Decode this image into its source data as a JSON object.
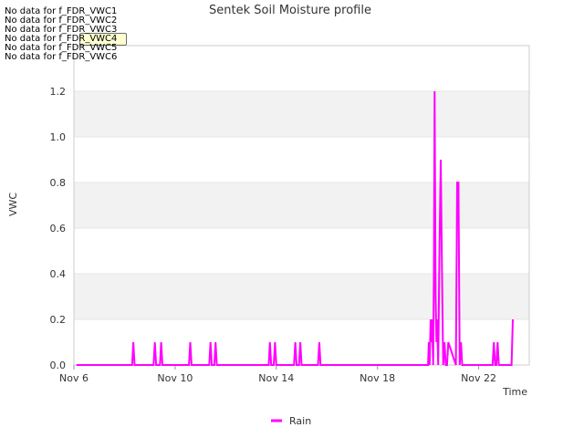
{
  "chart_data": {
    "type": "line",
    "title": "Sentek Soil Moisture profile",
    "xlabel": "Time",
    "ylabel": "VWC",
    "x_ticks": [
      "Nov 6",
      "Nov 10",
      "Nov 14",
      "Nov 18",
      "Nov 22"
    ],
    "x_tick_days": [
      6,
      10,
      14,
      18,
      22
    ],
    "xlim": [
      6,
      24
    ],
    "ylim": [
      0,
      1.4
    ],
    "y_ticks": [
      "0.0",
      "0.2",
      "0.4",
      "0.6",
      "0.8",
      "1.0",
      "1.2"
    ],
    "legend_position": "bottom-center",
    "grid": "horizontal alternating bands",
    "series": [
      {
        "name": "Rain",
        "color": "#ff00ff",
        "x_days": [
          6.1,
          8.3,
          8.35,
          8.4,
          9.15,
          9.2,
          9.25,
          9.4,
          9.45,
          9.5,
          10.55,
          10.6,
          10.65,
          11.35,
          11.4,
          11.45,
          11.55,
          11.6,
          11.65,
          13.7,
          13.75,
          13.8,
          13.9,
          13.95,
          14.0,
          14.7,
          14.75,
          14.8,
          14.9,
          14.95,
          15.0,
          15.65,
          15.7,
          15.75,
          20.0,
          20.03,
          20.06,
          20.1,
          20.13,
          20.16,
          20.2,
          20.23,
          20.26,
          20.3,
          20.33,
          20.36,
          20.4,
          20.45,
          20.5,
          20.55,
          20.6,
          20.65,
          20.7,
          20.75,
          20.8,
          21.1,
          21.15,
          21.2,
          21.25,
          21.3,
          21.35,
          22.55,
          22.6,
          22.65,
          22.7,
          22.75,
          22.8,
          23.3,
          23.35
        ],
        "values": [
          0,
          0,
          0.1,
          0,
          0,
          0.1,
          0,
          0,
          0.1,
          0,
          0,
          0.1,
          0,
          0,
          0.1,
          0,
          0,
          0.1,
          0,
          0,
          0.1,
          0,
          0,
          0.1,
          0,
          0,
          0.1,
          0,
          0,
          0.1,
          0,
          0,
          0.1,
          0,
          0,
          0.1,
          0,
          0.2,
          0.1,
          0.2,
          0,
          0.4,
          1.2,
          0.3,
          0.1,
          0.2,
          0,
          0.5,
          0.9,
          0.4,
          0,
          0.1,
          0,
          0,
          0.1,
          0,
          0.8,
          0.8,
          0,
          0.1,
          0,
          0,
          0.1,
          0,
          0,
          0.1,
          0,
          0,
          0.2
        ]
      }
    ]
  },
  "messages": [
    "No data for f_FDR_VWC1",
    "No data for f_FDR_VWC2",
    "No data for f_FDR_VWC3",
    "No data for f_FDR_VWC4",
    "No data for f_FDR_VWC5",
    "No data for f_FDR_VWC6"
  ]
}
